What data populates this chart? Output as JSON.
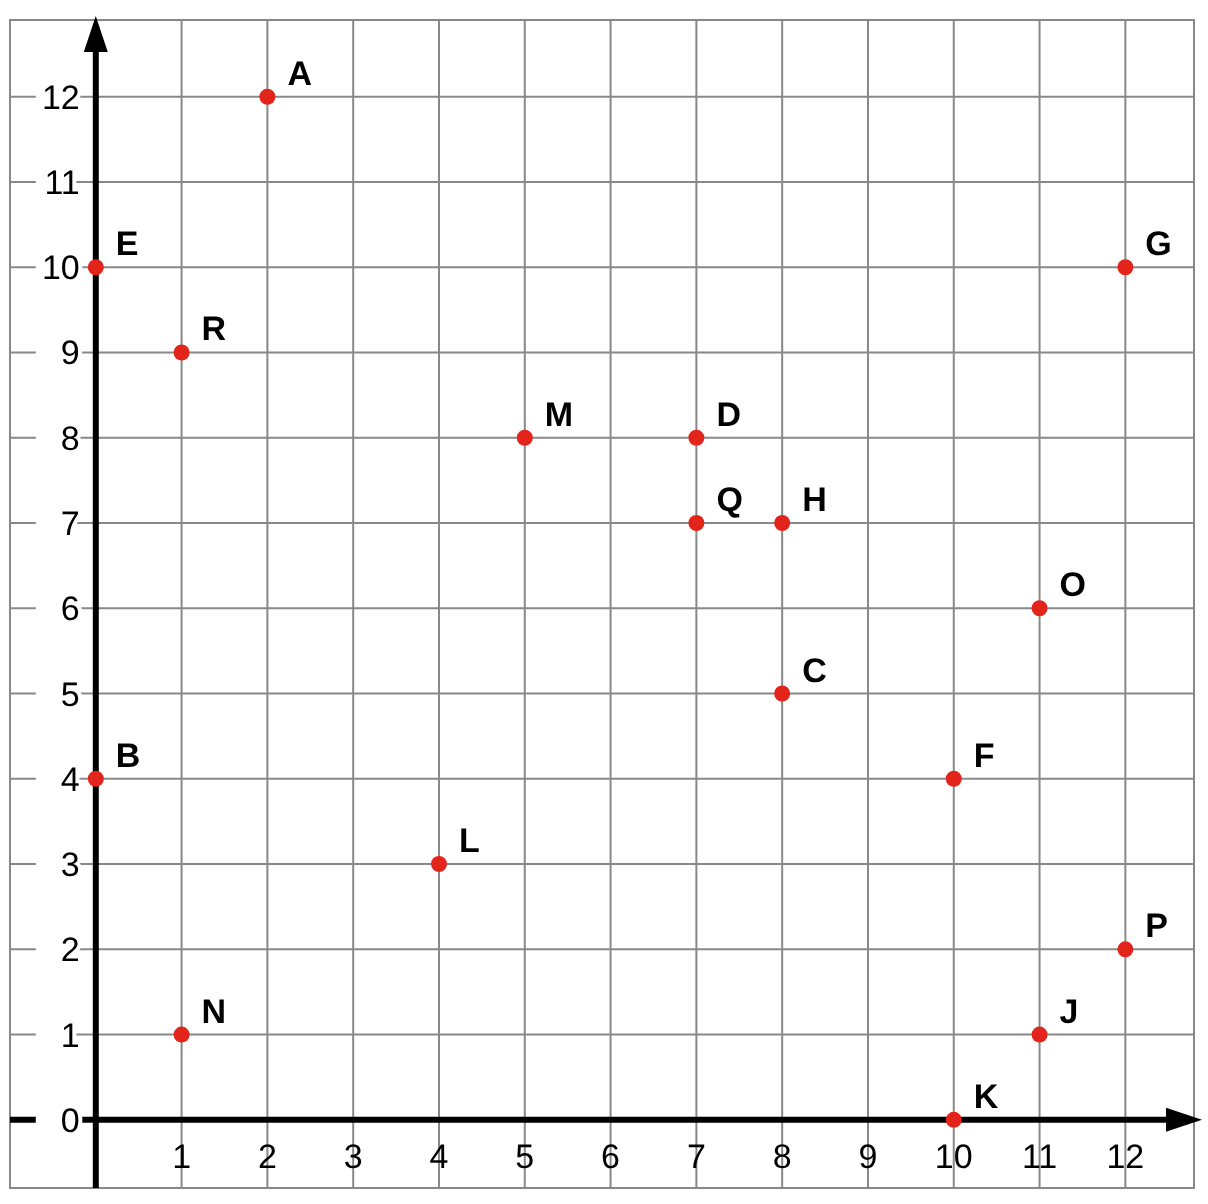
{
  "chart_data": {
    "type": "scatter",
    "x": [
      2,
      0,
      1,
      12,
      5,
      7,
      7,
      8,
      11,
      8,
      0,
      10,
      4,
      12,
      1,
      11,
      10
    ],
    "values": [
      12,
      10,
      9,
      10,
      8,
      8,
      7,
      7,
      6,
      5,
      4,
      4,
      3,
      2,
      1,
      1,
      0
    ],
    "color": "#e3241b",
    "marker": "circle",
    "grid": true,
    "xlim": [
      -1,
      12.8
    ],
    "ylim": [
      -0.8,
      12.9
    ],
    "xticks": [
      1,
      2,
      3,
      4,
      5,
      6,
      7,
      8,
      9,
      10,
      11,
      12
    ],
    "yticks": [
      0,
      1,
      2,
      3,
      4,
      5,
      6,
      7,
      8,
      9,
      10,
      11,
      12
    ],
    "annotations": [
      {
        "text": "A",
        "x": 2,
        "y": 12
      },
      {
        "text": "E",
        "x": 0,
        "y": 10
      },
      {
        "text": "R",
        "x": 1,
        "y": 9
      },
      {
        "text": "G",
        "x": 12,
        "y": 10
      },
      {
        "text": "M",
        "x": 5,
        "y": 8
      },
      {
        "text": "D",
        "x": 7,
        "y": 8
      },
      {
        "text": "Q",
        "x": 7,
        "y": 7
      },
      {
        "text": "H",
        "x": 8,
        "y": 7
      },
      {
        "text": "O",
        "x": 11,
        "y": 6
      },
      {
        "text": "C",
        "x": 8,
        "y": 5
      },
      {
        "text": "B",
        "x": 0,
        "y": 4
      },
      {
        "text": "F",
        "x": 10,
        "y": 4
      },
      {
        "text": "L",
        "x": 4,
        "y": 3
      },
      {
        "text": "P",
        "x": 12,
        "y": 2
      },
      {
        "text": "N",
        "x": 1,
        "y": 1
      },
      {
        "text": "J",
        "x": 11,
        "y": 1
      },
      {
        "text": "K",
        "x": 10,
        "y": 0
      }
    ]
  }
}
